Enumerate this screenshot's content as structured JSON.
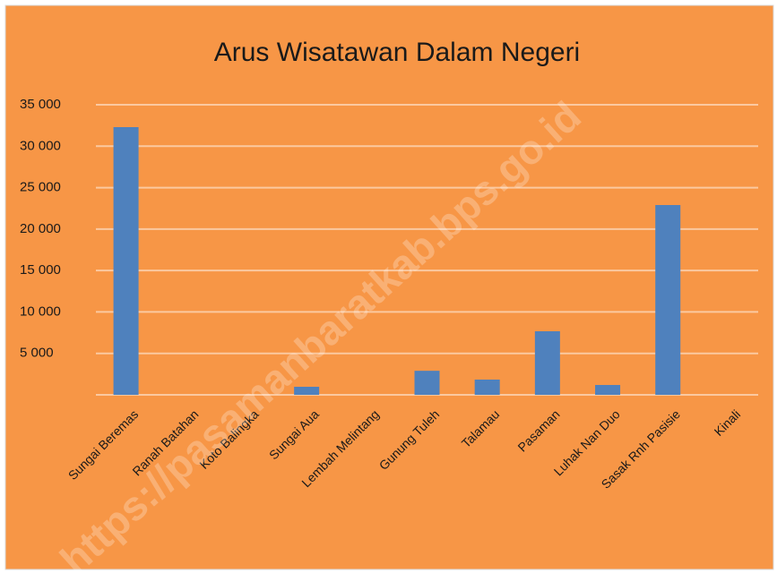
{
  "chart_data": {
    "type": "bar",
    "title": "Arus Wisatawan Dalam Negeri",
    "categories": [
      "Sungai Beremas",
      "Ranah Batahan",
      "Koto Balingka",
      "Sungai Aua",
      "Lembah Melintang",
      "Gunung Tuleh",
      "Talamau",
      "Pasaman",
      "Luhak Nan Duo",
      "Sasak Rnh Pasisie",
      "Kinali"
    ],
    "values": [
      32300,
      0,
      0,
      970,
      0,
      2900,
      1840,
      7670,
      1190,
      22900,
      0
    ],
    "color": "#4f81bd",
    "ylim": [
      0,
      35000
    ],
    "yticks": [
      {
        "value": 5000,
        "label": "5 000"
      },
      {
        "value": 10000,
        "label": "10 000"
      },
      {
        "value": 15000,
        "label": "15 000"
      },
      {
        "value": 20000,
        "label": "20 000"
      },
      {
        "value": 25000,
        "label": "25 000"
      },
      {
        "value": 30000,
        "label": "30 000"
      },
      {
        "value": 35000,
        "label": "35 000"
      }
    ],
    "grid": true,
    "watermark": "https://pasamanbaratkab.bps.go.id"
  }
}
